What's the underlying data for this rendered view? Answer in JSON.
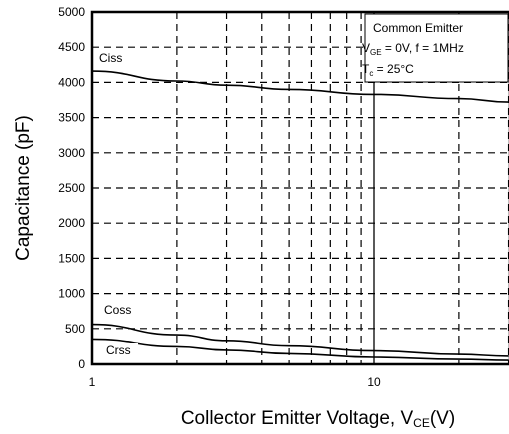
{
  "chart_data": {
    "type": "line",
    "x_scale": "log",
    "xlim": [
      1,
      30
    ],
    "ylim": [
      0,
      5000
    ],
    "y_ticks": [
      0,
      500,
      1000,
      1500,
      2000,
      2500,
      3000,
      3500,
      4000,
      4500,
      5000
    ],
    "x_ticks": [
      1,
      10
    ],
    "x_tick_labels": [
      "1",
      "10"
    ],
    "xlabel_main": "Collector Emitter Voltage, V",
    "xlabel_sub": "CE",
    "xlabel_tail": "(V)",
    "ylabel": "Capacitance (pF)",
    "grid": true,
    "series": [
      {
        "name": "Ciss",
        "x": [
          1,
          2,
          3,
          5,
          10,
          20,
          30
        ],
        "y": [
          4160,
          4020,
          3960,
          3900,
          3830,
          3770,
          3720
        ]
      },
      {
        "name": "Coss",
        "x": [
          1,
          2,
          3,
          5,
          10,
          20,
          30
        ],
        "y": [
          560,
          410,
          330,
          260,
          190,
          140,
          115
        ]
      },
      {
        "name": "Crss",
        "x": [
          1,
          2,
          3,
          5,
          10,
          20,
          30
        ],
        "y": [
          350,
          250,
          200,
          150,
          100,
          70,
          55
        ]
      }
    ],
    "annotation": {
      "line1": "Common Emitter",
      "line2_a": "V",
      "line2_sub": "GE",
      "line2_b": " = 0V, f = 1MHz",
      "line3_a": "T",
      "line3_sub": "c",
      "line3_b": " = 25°C"
    }
  }
}
